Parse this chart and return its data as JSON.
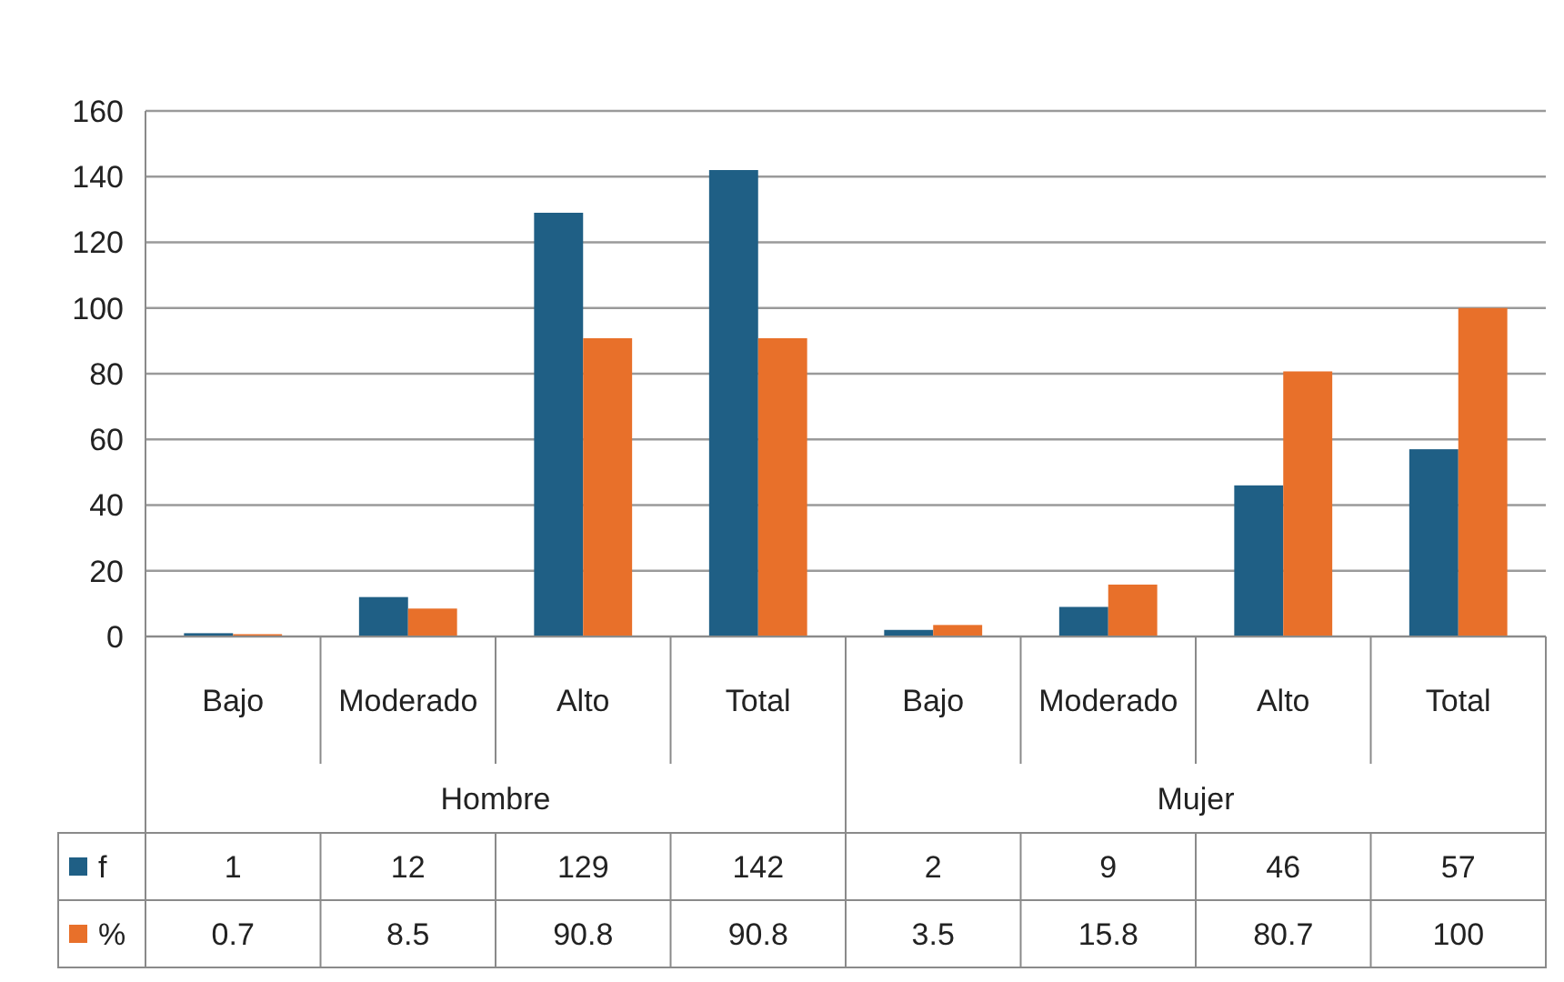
{
  "chart_data": {
    "type": "bar",
    "categories": [
      "Bajo",
      "Moderado",
      "Alto",
      "Total",
      "Bajo",
      "Moderado",
      "Alto",
      "Total"
    ],
    "series": [
      {
        "name": "f",
        "color": "#1f5f85",
        "values": [
          1,
          12,
          129,
          142,
          2,
          9,
          46,
          57
        ]
      },
      {
        "name": "%",
        "color": "#e8702a",
        "values": [
          0.7,
          8.5,
          90.8,
          90.8,
          3.5,
          15.8,
          80.7,
          100
        ]
      }
    ],
    "annotations": [
      "Hombre",
      "Mujer"
    ],
    "ylim": [
      0,
      160
    ],
    "yticks": [
      0,
      20,
      40,
      60,
      80,
      100,
      120,
      140,
      160
    ],
    "grid": "y",
    "legend": "bottom",
    "data_labels": true
  }
}
